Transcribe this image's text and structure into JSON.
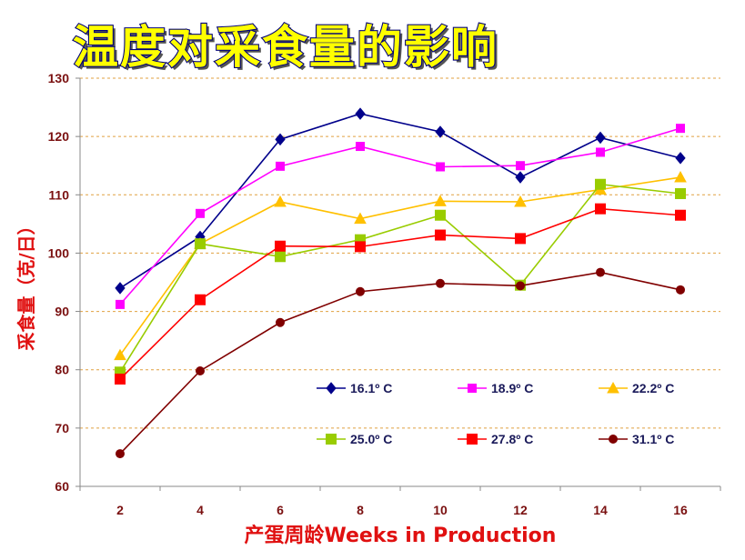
{
  "chart_data": {
    "type": "line",
    "title": "温度对采食量的影响",
    "xlabel": "产蛋周龄Weeks in Production",
    "ylabel": "采食量（克/日）",
    "x": [
      2,
      4,
      6,
      8,
      10,
      12,
      14,
      16
    ],
    "ylim": [
      60,
      130
    ],
    "yticks": [
      60,
      70,
      80,
      90,
      100,
      110,
      120,
      130
    ],
    "grid": "horizontal dashed",
    "legend_position": "bottom-right inside plot",
    "series": [
      {
        "name": "16.1º C",
        "color": "#00008b",
        "marker": "diamond",
        "values": [
          94,
          102.8,
          119.5,
          123.9,
          120.8,
          113,
          119.8,
          116.3
        ]
      },
      {
        "name": "18.9º C",
        "color": "#ff00ff",
        "marker": "square",
        "values": [
          91.2,
          106.8,
          114.9,
          118.3,
          114.8,
          115,
          117.3,
          121.4
        ]
      },
      {
        "name": "22.2º C",
        "color": "#ffc000",
        "marker": "triangle",
        "values": [
          82.5,
          101.6,
          108.8,
          105.9,
          108.9,
          108.8,
          110.9,
          113
        ]
      },
      {
        "name": "25.0º C",
        "color": "#99cc00",
        "marker": "square",
        "values": [
          79.6,
          101.6,
          99.4,
          102.3,
          106.5,
          94.5,
          111.8,
          110.2
        ]
      },
      {
        "name": "27.8º C",
        "color": "#ff0000",
        "marker": "square",
        "values": [
          78.4,
          92,
          101.2,
          101.1,
          103.1,
          102.5,
          107.6,
          106.5
        ]
      },
      {
        "name": "31.1º C",
        "color": "#800000",
        "marker": "circle",
        "values": [
          65.6,
          79.8,
          88.1,
          93.4,
          94.8,
          94.4,
          96.7,
          93.7
        ]
      }
    ]
  }
}
